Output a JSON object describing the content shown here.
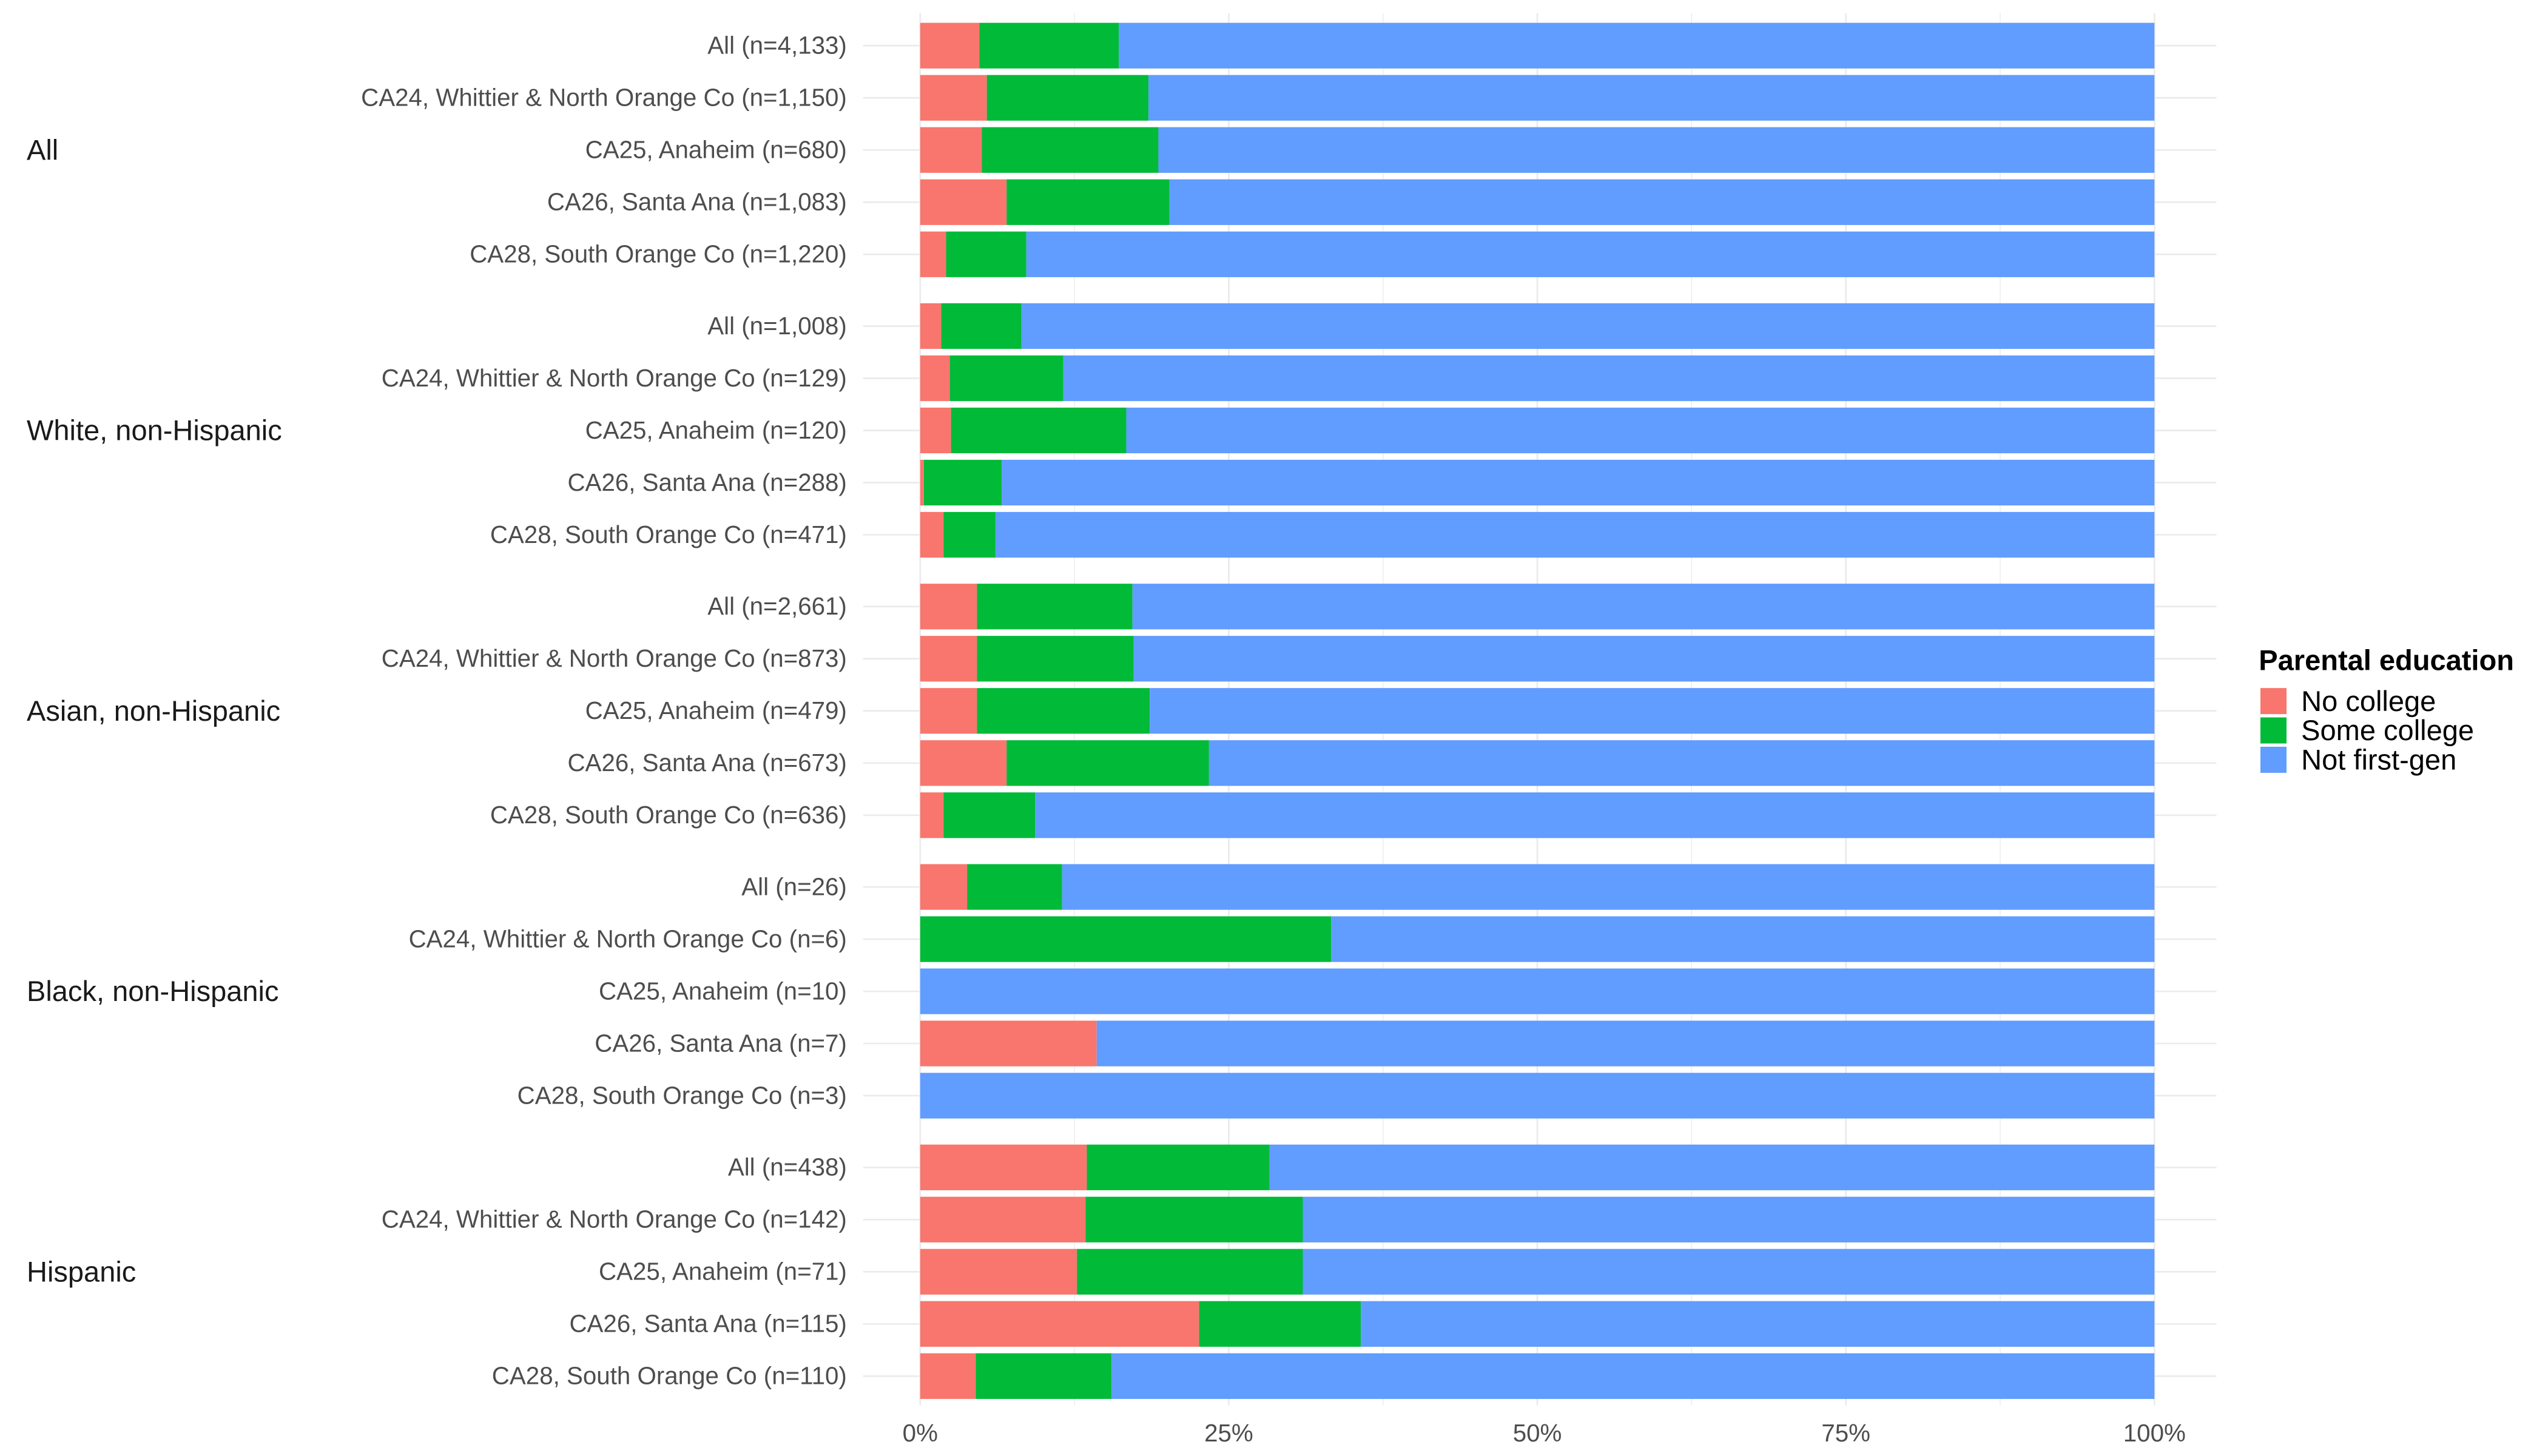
{
  "chart_data": {
    "type": "bar",
    "orientation": "horizontal",
    "stacked": true,
    "xlabel": "",
    "ylabel": "",
    "xlim": [
      0,
      100
    ],
    "x_ticks": [
      "0%",
      "25%",
      "50%",
      "75%",
      "100%"
    ],
    "grid": true,
    "legend": {
      "title": "Parental education",
      "placement": "right",
      "entries": [
        "No college",
        "Some college",
        "Not first-gen"
      ]
    },
    "colors": {
      "No college": "#F8766D",
      "Some college": "#00BA38",
      "Not first-gen": "#619CFF"
    },
    "groups": [
      {
        "label": "All",
        "rows": [
          {
            "label": "All (n=4,133)",
            "values": [
              4.8,
              11.3,
              83.9
            ]
          },
          {
            "label": "CA24, Whittier & North Orange Co (n=1,150)",
            "values": [
              5.4,
              13.1,
              81.5
            ]
          },
          {
            "label": "CA25, Anaheim (n=680)",
            "values": [
              5.0,
              14.3,
              80.7
            ]
          },
          {
            "label": "CA26, Santa Ana (n=1,083)",
            "values": [
              7.0,
              13.2,
              79.8
            ]
          },
          {
            "label": "CA28, South Orange Co (n=1,220)",
            "values": [
              2.1,
              6.5,
              91.4
            ]
          }
        ]
      },
      {
        "label": "White, non-Hispanic",
        "rows": [
          {
            "label": "All (n=1,008)",
            "values": [
              1.7,
              6.5,
              91.8
            ]
          },
          {
            "label": "CA24, Whittier & North Orange Co (n=129)",
            "values": [
              2.4,
              9.2,
              88.4
            ]
          },
          {
            "label": "CA25, Anaheim (n=120)",
            "values": [
              2.5,
              14.2,
              83.3
            ]
          },
          {
            "label": "CA26, Santa Ana (n=288)",
            "values": [
              0.3,
              6.3,
              93.4
            ]
          },
          {
            "label": "CA28, South Orange Co (n=471)",
            "values": [
              1.9,
              4.2,
              93.9
            ]
          }
        ]
      },
      {
        "label": "Asian, non-Hispanic",
        "rows": [
          {
            "label": "All (n=2,661)",
            "values": [
              4.6,
              12.6,
              82.8
            ]
          },
          {
            "label": "CA24, Whittier & North Orange Co (n=873)",
            "values": [
              4.6,
              12.7,
              82.7
            ]
          },
          {
            "label": "CA25, Anaheim (n=479)",
            "values": [
              4.6,
              14.0,
              81.4
            ]
          },
          {
            "label": "CA26, Santa Ana (n=673)",
            "values": [
              7.0,
              16.4,
              76.6
            ]
          },
          {
            "label": "CA28, South Orange Co (n=636)",
            "values": [
              1.9,
              7.4,
              90.7
            ]
          }
        ]
      },
      {
        "label": "Black, non-Hispanic",
        "rows": [
          {
            "label": "All (n=26)",
            "values": [
              3.8,
              7.7,
              88.5
            ]
          },
          {
            "label": "CA24, Whittier & North Orange Co (n=6)",
            "values": [
              0,
              33.3,
              66.7
            ]
          },
          {
            "label": "CA25, Anaheim (n=10)",
            "values": [
              0,
              0,
              100
            ]
          },
          {
            "label": "CA26, Santa Ana (n=7)",
            "values": [
              14.3,
              0,
              85.7
            ]
          },
          {
            "label": "CA28, South Orange Co (n=3)",
            "values": [
              0,
              0,
              100
            ]
          }
        ]
      },
      {
        "label": "Hispanic",
        "rows": [
          {
            "label": "All (n=438)",
            "values": [
              13.5,
              14.8,
              71.7
            ]
          },
          {
            "label": "CA24, Whittier & North Orange Co (n=142)",
            "values": [
              13.4,
              17.6,
              69.0
            ]
          },
          {
            "label": "CA25, Anaheim (n=71)",
            "values": [
              12.7,
              18.3,
              69.0
            ]
          },
          {
            "label": "CA26, Santa Ana (n=115)",
            "values": [
              22.6,
              13.1,
              64.3
            ]
          },
          {
            "label": "CA28, South Orange Co (n=110)",
            "values": [
              4.5,
              11.0,
              84.5
            ]
          }
        ]
      }
    ]
  }
}
